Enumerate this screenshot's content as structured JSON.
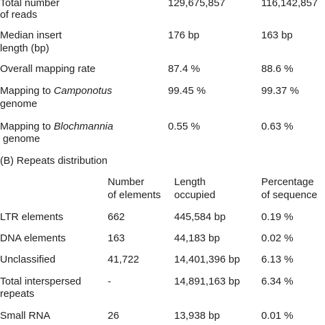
{
  "section_a": {
    "rows": [
      {
        "label_line1": "Total number",
        "label_line2": "of reads",
        "v1": "129,675,857",
        "v2": "116,142,857"
      },
      {
        "label_line1": "Median insert",
        "label_line2": "length (bp)",
        "v1": "176 bp",
        "v2": "163 bp"
      },
      {
        "label_line1": "Overall mapping rate",
        "v1": "87.4 %",
        "v2": "88.6 %"
      },
      {
        "label_pre": "Mapping to ",
        "label_italic": "Camponotus",
        "label_line2": "genome",
        "v1": "99.45 %",
        "v2": "99.37 %"
      },
      {
        "label_pre": "Mapping to ",
        "label_italic": "Blochmannia",
        "label_line2": " genome",
        "v1": "0.55 %",
        "v2": "0.63 %"
      }
    ]
  },
  "section_b": {
    "title": "(B) Repeats distribution",
    "headers": [
      {
        "line1": "Number",
        "line2": "of elements"
      },
      {
        "line1": "Length",
        "line2": "occupied"
      },
      {
        "line1": "Percentage",
        "line2": "of sequence"
      }
    ],
    "rows": [
      {
        "label_line1": "LTR elements",
        "n": "662",
        "len": "445,584 bp",
        "pct": "0.19 %"
      },
      {
        "label_line1": "DNA elements",
        "n": "163",
        "len": "44,183 bp",
        "pct": "0.02 %"
      },
      {
        "label_line1": "Unclassified",
        "n": "41,722",
        "len": "14,401,396 bp",
        "pct": "6.13 %"
      },
      {
        "label_line1": "Total interspersed",
        "label_line2": "repeats",
        "n": "-",
        "len": "14,891,163 bp",
        "pct": "6.34 %"
      },
      {
        "label_line1": "Small RNA",
        "n": "26",
        "len": "13,938 bp",
        "pct": "0.01 %"
      }
    ]
  }
}
